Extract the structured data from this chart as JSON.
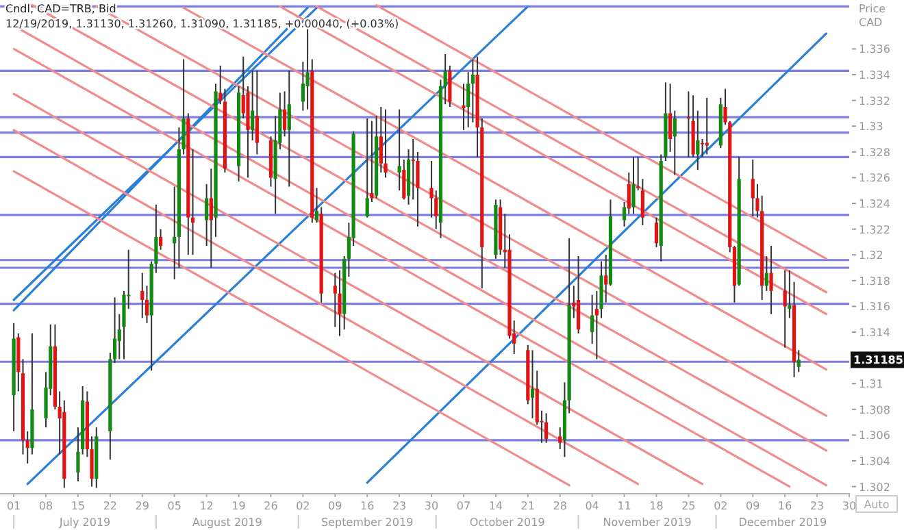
{
  "chart_data": {
    "type": "candlestick",
    "title": "Cndl, CAD=TRB, Bid",
    "subtitle": "12/19/2019, 1.31130, 1.31260, 1.31090, 1.31185, +0.00040, (+0.03%)",
    "ylabel": "Price CAD",
    "xlim": [
      "2019-06-28",
      "2019-12-30"
    ],
    "ylim": [
      1.3015,
      1.3398
    ],
    "xticks": [
      {
        "value": "2019-07-01",
        "label": "01"
      },
      {
        "value": "2019-07-08",
        "label": "08"
      },
      {
        "value": "2019-07-15",
        "label": "15"
      },
      {
        "value": "2019-07-22",
        "label": "22"
      },
      {
        "value": "2019-07-29",
        "label": "29"
      },
      {
        "value": "2019-08-05",
        "label": "05"
      },
      {
        "value": "2019-08-12",
        "label": "12"
      },
      {
        "value": "2019-08-19",
        "label": "19"
      },
      {
        "value": "2019-08-26",
        "label": "26"
      },
      {
        "value": "2019-09-02",
        "label": "02"
      },
      {
        "value": "2019-09-09",
        "label": "09"
      },
      {
        "value": "2019-09-16",
        "label": "16"
      },
      {
        "value": "2019-09-23",
        "label": "23"
      },
      {
        "value": "2019-09-30",
        "label": "30"
      },
      {
        "value": "2019-10-07",
        "label": "07"
      },
      {
        "value": "2019-10-14",
        "label": "14"
      },
      {
        "value": "2019-10-21",
        "label": "21"
      },
      {
        "value": "2019-10-28",
        "label": "28"
      },
      {
        "value": "2019-11-04",
        "label": "04"
      },
      {
        "value": "2019-11-11",
        "label": "11"
      },
      {
        "value": "2019-11-18",
        "label": "18"
      },
      {
        "value": "2019-11-25",
        "label": "25"
      },
      {
        "value": "2019-12-02",
        "label": "02"
      },
      {
        "value": "2019-12-09",
        "label": "09"
      },
      {
        "value": "2019-12-16",
        "label": "16"
      },
      {
        "value": "2019-12-23",
        "label": "23"
      },
      {
        "value": "2019-12-30",
        "label": "30"
      }
    ],
    "yticks": [
      1.302,
      1.304,
      1.306,
      1.308,
      1.31,
      {
        "value": 1.312,
        "label": null
      },
      1.314,
      1.316,
      1.318,
      1.32,
      1.322,
      1.324,
      1.326,
      1.328,
      1.33,
      1.332,
      1.334,
      1.336
    ],
    "x": [
      "2019-07-01",
      "2019-07-02",
      "2019-07-03",
      "2019-07-04",
      "2019-07-05",
      "2019-07-08",
      "2019-07-09",
      "2019-07-10",
      "2019-07-11",
      "2019-07-12",
      "2019-07-15",
      "2019-07-16",
      "2019-07-17",
      "2019-07-18",
      "2019-07-19",
      "2019-07-22",
      "2019-07-23",
      "2019-07-24",
      "2019-07-25",
      "2019-07-26",
      "2019-07-29",
      "2019-07-30",
      "2019-07-31",
      "2019-08-01",
      "2019-08-02",
      "2019-08-05",
      "2019-08-06",
      "2019-08-07",
      "2019-08-08",
      "2019-08-09",
      "2019-08-12",
      "2019-08-13",
      "2019-08-14",
      "2019-08-15",
      "2019-08-16",
      "2019-08-19",
      "2019-08-20",
      "2019-08-21",
      "2019-08-22",
      "2019-08-23",
      "2019-08-26",
      "2019-08-27",
      "2019-08-28",
      "2019-08-29",
      "2019-08-30",
      "2019-09-02",
      "2019-09-03",
      "2019-09-04",
      "2019-09-05",
      "2019-09-06",
      "2019-09-09",
      "2019-09-10",
      "2019-09-11",
      "2019-09-12",
      "2019-09-13",
      "2019-09-16",
      "2019-09-17",
      "2019-09-18",
      "2019-09-19",
      "2019-09-20",
      "2019-09-23",
      "2019-09-24",
      "2019-09-25",
      "2019-09-26",
      "2019-09-27",
      "2019-09-30",
      "2019-10-01",
      "2019-10-02",
      "2019-10-03",
      "2019-10-04",
      "2019-10-07",
      "2019-10-08",
      "2019-10-09",
      "2019-10-10",
      "2019-10-11",
      "2019-10-14",
      "2019-10-15",
      "2019-10-16",
      "2019-10-17",
      "2019-10-18",
      "2019-10-21",
      "2019-10-22",
      "2019-10-23",
      "2019-10-24",
      "2019-10-25",
      "2019-10-28",
      "2019-10-29",
      "2019-10-30",
      "2019-10-31",
      "2019-11-01",
      "2019-11-04",
      "2019-11-05",
      "2019-11-06",
      "2019-11-07",
      "2019-11-08",
      "2019-11-11",
      "2019-11-12",
      "2019-11-13",
      "2019-11-14",
      "2019-11-15",
      "2019-11-18",
      "2019-11-19",
      "2019-11-20",
      "2019-11-21",
      "2019-11-22",
      "2019-11-25",
      "2019-11-26",
      "2019-11-27",
      "2019-11-28",
      "2019-11-29",
      "2019-12-02",
      "2019-12-03",
      "2019-12-04",
      "2019-12-05",
      "2019-12-06",
      "2019-12-09",
      "2019-12-10",
      "2019-12-11",
      "2019-12-12",
      "2019-12-13",
      "2019-12-16",
      "2019-12-17",
      "2019-12-18",
      "2019-12-19"
    ],
    "ohlc": [
      [
        1.3091,
        1.3147,
        1.3063,
        1.3135
      ],
      [
        1.3136,
        1.3139,
        1.3094,
        1.3109
      ],
      [
        1.3108,
        1.3119,
        1.3045,
        1.3056
      ],
      [
        1.3056,
        1.3063,
        1.3038,
        1.305
      ],
      [
        1.305,
        1.3139,
        1.3045,
        1.308
      ],
      [
        1.3073,
        1.3109,
        1.3066,
        1.3097
      ],
      [
        1.3096,
        1.3146,
        1.3091,
        1.3129
      ],
      [
        1.3129,
        1.3146,
        1.308,
        1.3082
      ],
      [
        1.3082,
        1.3094,
        1.3045,
        1.3073
      ],
      [
        1.3078,
        1.3087,
        1.3019,
        1.3026
      ],
      [
        1.3031,
        1.3066,
        1.3024,
        1.3047
      ],
      [
        1.3049,
        1.3098,
        1.3045,
        1.3087
      ],
      [
        1.3086,
        1.3094,
        1.3043,
        1.3049
      ],
      [
        1.3049,
        1.3059,
        1.302,
        1.3026
      ],
      [
        1.3026,
        1.3066,
        1.3019,
        1.3059
      ],
      [
        1.3063,
        1.3124,
        1.3041,
        1.3119
      ],
      [
        1.3119,
        1.3167,
        1.3116,
        1.3135
      ],
      [
        1.3133,
        1.3154,
        1.3119,
        1.3142
      ],
      [
        1.3144,
        1.3172,
        1.3119,
        1.3169
      ],
      [
        1.3169,
        1.3204,
        1.3158,
        1.3169
      ],
      [
        1.3172,
        1.3186,
        1.3151,
        1.3165
      ],
      [
        1.3165,
        1.3176,
        1.3147,
        1.3153
      ],
      [
        1.3153,
        1.3195,
        1.311,
        1.3193
      ],
      [
        1.3193,
        1.3239,
        1.3186,
        1.3214
      ],
      [
        1.3214,
        1.322,
        1.3204,
        1.3207
      ],
      [
        1.3209,
        1.3253,
        1.3181,
        1.3214
      ],
      [
        1.3214,
        1.3299,
        1.319,
        1.3282
      ],
      [
        1.3282,
        1.3352,
        1.3278,
        1.3306
      ],
      [
        1.3306,
        1.331,
        1.32,
        1.3229
      ],
      [
        1.3229,
        1.3282,
        1.32,
        1.3225
      ],
      [
        1.3227,
        1.3255,
        1.3207,
        1.3244
      ],
      [
        1.3244,
        1.3267,
        1.319,
        1.3227
      ],
      [
        1.3229,
        1.3333,
        1.3214,
        1.3327
      ],
      [
        1.3326,
        1.3347,
        1.3317,
        1.332
      ],
      [
        1.3319,
        1.3329,
        1.3264,
        1.3267
      ],
      [
        1.3269,
        1.3331,
        1.3257,
        1.3326
      ],
      [
        1.3324,
        1.3354,
        1.3306,
        1.331
      ],
      [
        1.3326,
        1.3331,
        1.326,
        1.3297
      ],
      [
        1.3297,
        1.3343,
        1.3289,
        1.3312
      ],
      [
        1.3308,
        1.3343,
        1.3278,
        1.3287
      ],
      [
        1.3289,
        1.3292,
        1.3253,
        1.326
      ],
      [
        1.3259,
        1.3308,
        1.3232,
        1.3289
      ],
      [
        1.3287,
        1.3326,
        1.3282,
        1.3313
      ],
      [
        1.3313,
        1.3327,
        1.3292,
        1.3297
      ],
      [
        1.3297,
        1.3343,
        1.3253,
        1.3317
      ],
      [
        1.3319,
        1.335,
        1.3312,
        1.3333
      ],
      [
        1.3331,
        1.3377,
        1.3313,
        1.3342
      ],
      [
        1.3343,
        1.3352,
        1.3225,
        1.3229
      ],
      [
        1.3227,
        1.3252,
        1.3225,
        1.3234
      ],
      [
        1.3232,
        1.3237,
        1.3163,
        1.317
      ],
      [
        1.3176,
        1.3186,
        1.3144,
        1.317
      ],
      [
        1.317,
        1.3188,
        1.3137,
        1.3154
      ],
      [
        1.3154,
        1.3199,
        1.3142,
        1.3197
      ],
      [
        1.3197,
        1.3225,
        1.3183,
        1.3214
      ],
      [
        1.3213,
        1.3296,
        1.3207,
        1.3294
      ],
      [
        1.323,
        1.3306,
        1.3229,
        1.3244
      ],
      [
        1.3248,
        1.3304,
        1.3241,
        1.3244
      ],
      [
        1.3246,
        1.3308,
        1.3244,
        1.3292
      ],
      [
        1.3292,
        1.3315,
        1.3264,
        1.3271
      ],
      [
        1.3271,
        1.3313,
        1.326,
        1.3264
      ],
      [
        1.3264,
        1.3313,
        1.325,
        1.3269
      ],
      [
        1.3266,
        1.3274,
        1.3243,
        1.3244
      ],
      [
        1.3246,
        1.3282,
        1.3239,
        1.3274
      ],
      [
        1.3274,
        1.329,
        1.3243,
        1.3273
      ],
      [
        1.3273,
        1.328,
        1.3222,
        1.3252
      ],
      [
        1.3252,
        1.3273,
        1.3229,
        1.3244
      ],
      [
        1.3244,
        1.325,
        1.322,
        1.323
      ],
      [
        1.3225,
        1.3336,
        1.3213,
        1.3331
      ],
      [
        1.3331,
        1.3356,
        1.3317,
        1.3343
      ],
      [
        1.3343,
        1.3347,
        1.3315,
        1.3319
      ],
      [
        1.3316,
        1.3333,
        1.3297,
        1.3314
      ],
      [
        1.3315,
        1.3342,
        1.3299,
        1.3333
      ],
      [
        1.3333,
        1.3352,
        1.3303,
        1.334
      ],
      [
        1.334,
        1.3354,
        1.3276,
        1.3299
      ],
      [
        1.3299,
        1.3306,
        1.3174,
        1.3206
      ],
      [
        1.32,
        1.3243,
        1.3197,
        1.3239
      ],
      [
        1.3237,
        1.3243,
        1.32,
        1.3204
      ],
      [
        1.3204,
        1.3232,
        1.319,
        1.3202
      ],
      [
        1.3204,
        1.3216,
        1.3135,
        1.3137
      ],
      [
        1.3139,
        1.3149,
        1.3123,
        1.3131
      ],
      [
        1.3126,
        1.313,
        1.3084,
        1.3087
      ],
      [
        1.3089,
        1.3126,
        1.3073,
        1.3096
      ],
      [
        1.3096,
        1.311,
        1.3068,
        1.307
      ],
      [
        1.3071,
        1.3079,
        1.3054,
        1.307
      ],
      [
        1.307,
        1.3077,
        1.3054,
        1.3057
      ],
      [
        1.3059,
        1.3066,
        1.3049,
        1.3054
      ],
      [
        1.3056,
        1.3101,
        1.3043,
        1.3087
      ],
      [
        1.3087,
        1.3213,
        1.3077,
        1.3161
      ],
      [
        1.3163,
        1.3176,
        1.3151,
        1.316
      ],
      [
        1.3165,
        1.3199,
        1.3139,
        1.3142
      ],
      [
        1.314,
        1.3169,
        1.3131,
        1.3153
      ],
      [
        1.3158,
        1.3172,
        1.3119,
        1.3153
      ],
      [
        1.3158,
        1.3195,
        1.3151,
        1.3184
      ],
      [
        1.3184,
        1.32,
        1.3163,
        1.3177
      ],
      [
        1.3177,
        1.3243,
        1.3176,
        1.323
      ],
      [
        1.3227,
        1.3241,
        1.3222,
        1.3237
      ],
      [
        1.3255,
        1.3264,
        1.3232,
        1.3236
      ],
      [
        1.3237,
        1.3276,
        1.3232,
        1.3255
      ],
      [
        1.3253,
        1.3276,
        1.325,
        1.3252
      ],
      [
        1.325,
        1.3259,
        1.3223,
        1.3229
      ],
      [
        1.3225,
        1.3229,
        1.3206,
        1.3209
      ],
      [
        1.3207,
        1.3278,
        1.3195,
        1.3273
      ],
      [
        1.3276,
        1.3334,
        1.3273,
        1.331
      ],
      [
        1.331,
        1.3333,
        1.328,
        1.329
      ],
      [
        1.3292,
        1.3312,
        1.3262,
        1.3306
      ],
      [
        1.3307,
        1.3327,
        1.3276,
        1.3306
      ],
      [
        1.3304,
        1.3324,
        1.3276,
        1.3278
      ],
      [
        1.3278,
        1.3312,
        1.3266,
        1.3289
      ],
      [
        1.3287,
        1.329,
        1.3276,
        1.3286
      ],
      [
        1.3287,
        1.3322,
        1.3278,
        1.3285
      ],
      [
        1.3285,
        1.3322,
        1.3283,
        1.3317
      ],
      [
        1.3315,
        1.3329,
        1.3301,
        1.3303
      ],
      [
        1.3303,
        1.3304,
        1.3202,
        1.3206
      ],
      [
        1.3206,
        1.3207,
        1.3163,
        1.3176
      ],
      [
        1.3177,
        1.3276,
        1.3176,
        1.3259
      ],
      [
        1.3259,
        1.3274,
        1.323,
        1.3244
      ],
      [
        1.3244,
        1.3255,
        1.3229,
        1.3234
      ],
      [
        1.3234,
        1.3246,
        1.3165,
        1.3176
      ],
      [
        1.3176,
        1.3199,
        1.3172,
        1.3186
      ],
      [
        1.3186,
        1.3207,
        1.3154,
        1.3172
      ],
      [
        1.3172,
        1.3188,
        1.3128,
        1.316
      ],
      [
        1.3158,
        1.3188,
        1.3151,
        1.3161
      ],
      [
        1.3161,
        1.3179,
        1.3105,
        1.3117
      ],
      [
        1.3113,
        1.3126,
        1.3109,
        1.31185
      ]
    ],
    "series": [
      {
        "type": "line",
        "color": "#2a7fd6",
        "x": [
          "2019-07-01",
          "2019-09-03"
        ],
        "values": [
          1.3157,
          1.3392
        ]
      },
      {
        "type": "line",
        "color": "#2a7fd6",
        "x": [
          "2019-07-01",
          "2019-09-05"
        ],
        "values": [
          1.3165,
          1.3392
        ]
      },
      {
        "type": "line",
        "color": "#2a7fd6",
        "x": [
          "2019-07-04",
          "2019-10-21"
        ],
        "values": [
          1.3022,
          1.3393
        ]
      },
      {
        "type": "line",
        "color": "#2a7fd6",
        "x": [
          "2019-09-16",
          "2019-12-25"
        ],
        "values": [
          1.3023,
          1.3372
        ]
      },
      {
        "type": "line",
        "color": "#f08c8c",
        "x": [
          "2019-09-18",
          "2019-12-25"
        ],
        "values": [
          1.3394,
          1.3197
        ]
      },
      {
        "type": "line",
        "color": "#f08c8c",
        "x": [
          "2019-09-05",
          "2019-12-25"
        ],
        "values": [
          1.3393,
          1.3171
        ]
      },
      {
        "type": "line",
        "color": "#f08c8c",
        "x": [
          "2019-08-28",
          "2019-12-25"
        ],
        "values": [
          1.3393,
          1.3154
        ]
      },
      {
        "type": "line",
        "color": "#f08c8c",
        "x": [
          "2019-08-07",
          "2019-12-25"
        ],
        "values": [
          1.3392,
          1.3111
        ]
      },
      {
        "type": "line",
        "color": "#f08c8c",
        "x": [
          "2019-07-19",
          "2019-12-25"
        ],
        "values": [
          1.3393,
          1.3075
        ]
      },
      {
        "type": "line",
        "color": "#f08c8c",
        "x": [
          "2019-07-05",
          "2019-12-25"
        ],
        "values": [
          1.3394,
          1.3048
        ]
      },
      {
        "type": "line",
        "color": "#f08c8c",
        "x": [
          "2019-07-01",
          "2019-12-25"
        ],
        "values": [
          1.3378,
          1.3021
        ]
      },
      {
        "type": "line",
        "color": "#f08c8c",
        "x": [
          "2019-07-01",
          "2019-12-17"
        ],
        "values": [
          1.336,
          1.302
        ]
      },
      {
        "type": "line",
        "color": "#f08c8c",
        "x": [
          "2019-07-01",
          "2019-11-28"
        ],
        "values": [
          1.3325,
          1.3022
        ]
      },
      {
        "type": "line",
        "color": "#f08c8c",
        "x": [
          "2019-07-01",
          "2019-11-14"
        ],
        "values": [
          1.3297,
          1.3022
        ]
      },
      {
        "type": "line",
        "color": "#f08c8c",
        "x": [
          "2019-07-01",
          "2019-10-30"
        ],
        "values": [
          1.3265,
          1.3021
        ]
      }
    ],
    "ref_lines": [
      {
        "axis": "y",
        "value": 1.3393,
        "color": "#7c7ce6"
      },
      {
        "axis": "y",
        "value": 1.3343,
        "color": "#7c7ce6"
      },
      {
        "axis": "y",
        "value": 1.3307,
        "color": "#7c7ce6"
      },
      {
        "axis": "y",
        "value": 1.3295,
        "color": "#7c7ce6"
      },
      {
        "axis": "y",
        "value": 1.3276,
        "color": "#7c7ce6"
      },
      {
        "axis": "y",
        "value": 1.3231,
        "color": "#7c7ce6"
      },
      {
        "axis": "y",
        "value": 1.3196,
        "color": "#7c7ce6"
      },
      {
        "axis": "y",
        "value": 1.319,
        "color": "#7c7ce6"
      },
      {
        "axis": "y",
        "value": 1.3162,
        "color": "#7c7ce6"
      },
      {
        "axis": "y",
        "value": 1.3117,
        "color": "#7c7ce6"
      },
      {
        "axis": "y",
        "value": 1.3056,
        "color": "#7c7ce6"
      }
    ],
    "annotations": [
      "July 2019",
      "August 2019",
      "September 2019",
      "October 2019",
      "November 2019",
      "December 2019",
      {
        "text": "1.31185",
        "y": 1.31185
      },
      "Auto"
    ]
  }
}
